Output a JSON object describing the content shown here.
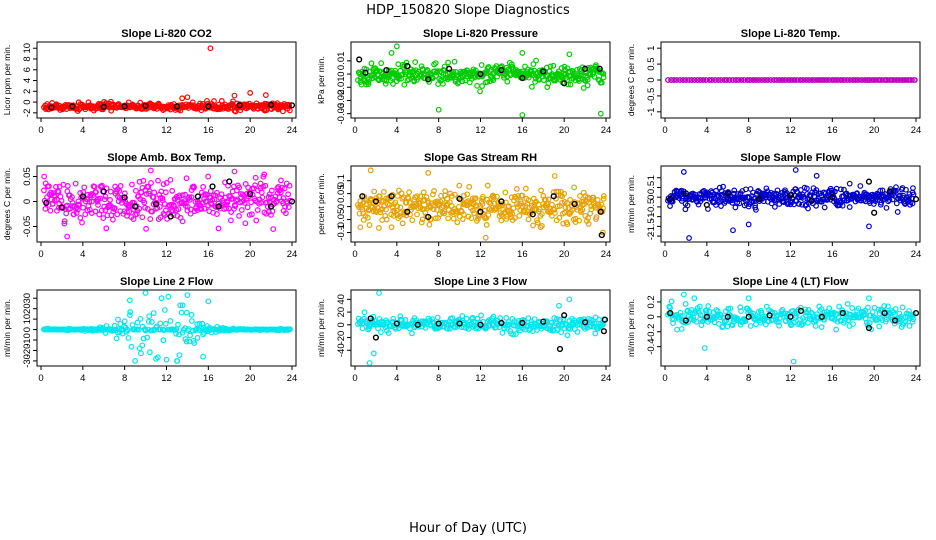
{
  "figure": {
    "title": "HDP_150820  Slope Diagnostics",
    "xlabel": "Hour of Day (UTC)"
  },
  "chart_data": [
    {
      "type": "scatter",
      "title": "Slope Li-820 CO2",
      "ylabel": "Licor ppm per min.",
      "color": "#ff0000",
      "xlim": [
        0,
        24
      ],
      "xticks": [
        0,
        4,
        8,
        12,
        16,
        20,
        24
      ],
      "ylim": [
        -2.4,
        10.6
      ],
      "yticks": [
        -2,
        0,
        2,
        4,
        6,
        8,
        10
      ],
      "spread": 0.5,
      "n": 360,
      "seed": 11,
      "black": [
        [
          1,
          -1
        ],
        [
          3,
          -0.8
        ],
        [
          6,
          -0.9
        ],
        [
          8,
          -0.8
        ],
        [
          10,
          -0.7
        ],
        [
          13,
          -0.8
        ],
        [
          16,
          -0.8
        ],
        [
          19,
          -0.6
        ],
        [
          22,
          -0.5
        ],
        [
          24,
          -0.6
        ]
      ],
      "outliers": [
        [
          16.2,
          10
        ],
        [
          20,
          1.7
        ],
        [
          21.5,
          1.3
        ],
        [
          18.5,
          1.2
        ],
        [
          14,
          0.9
        ],
        [
          13.5,
          0.7
        ]
      ]
    },
    {
      "type": "scatter",
      "title": "Slope Li-820 Pressure",
      "ylabel": "kPa per min.",
      "color": "#00cc00",
      "xlim": [
        0,
        24
      ],
      "xticks": [
        0,
        4,
        8,
        12,
        16,
        20,
        24
      ],
      "ylim": [
        -0.031,
        0.022
      ],
      "yticks": [
        -0.03,
        -0.02,
        -0.01,
        0.0,
        0.01
      ],
      "spread": 0.0045,
      "n": 420,
      "seed": 23,
      "black": [
        [
          0.4,
          0.011
        ],
        [
          1,
          0.001
        ],
        [
          3,
          0.003
        ],
        [
          5,
          0.006
        ],
        [
          7,
          -0.004
        ],
        [
          9,
          0.004
        ],
        [
          12,
          0.0
        ],
        [
          14,
          0.003
        ],
        [
          16,
          -0.003
        ],
        [
          18,
          0.002
        ],
        [
          20,
          -0.007
        ],
        [
          22,
          0.004
        ],
        [
          23.4,
          0.004
        ]
      ],
      "outliers": [
        [
          8,
          -0.027
        ],
        [
          16,
          -0.031
        ],
        [
          23.5,
          -0.03
        ],
        [
          4,
          0.021
        ],
        [
          3.5,
          0.016
        ],
        [
          16,
          0.016
        ],
        [
          20.5,
          0.015
        ]
      ]
    },
    {
      "type": "scatter",
      "title": "Slope Li-820 Temp.",
      "ylabel": "degrees C per min.",
      "color": "#ff00ff",
      "xlim": [
        0,
        24
      ],
      "xticks": [
        0,
        4,
        8,
        12,
        16,
        20,
        24
      ],
      "ylim": [
        -1.1,
        1.1
      ],
      "yticks": [
        -1.0,
        -0.5,
        0.0,
        0.5,
        1.0
      ],
      "spread": 0,
      "n": 85,
      "seed": 31,
      "black": [],
      "outliers": []
    },
    {
      "type": "scatter",
      "title": "Slope Amb. Box Temp.",
      "ylabel": "degrees C per min.",
      "color": "#ff00ff",
      "xlim": [
        0,
        24
      ],
      "xticks": [
        0,
        4,
        8,
        12,
        16,
        20,
        24
      ],
      "ylim": [
        -0.075,
        0.065
      ],
      "yticks": [
        -0.05,
        0.0,
        0.05
      ],
      "spread": 0.025,
      "n": 420,
      "seed": 47,
      "black": [
        [
          0.5,
          -0.003
        ],
        [
          2,
          -0.012
        ],
        [
          4,
          0.01
        ],
        [
          6,
          0.02
        ],
        [
          8,
          0.008
        ],
        [
          9,
          -0.01
        ],
        [
          11,
          -0.005
        ],
        [
          12.4,
          -0.03
        ],
        [
          15,
          0.01
        ],
        [
          17,
          -0.01
        ],
        [
          16.4,
          0.03
        ],
        [
          18,
          0.04
        ],
        [
          20,
          0.015
        ],
        [
          22,
          -0.01
        ],
        [
          24,
          0.0
        ]
      ],
      "outliers": [
        [
          18.5,
          0.06
        ],
        [
          10.5,
          0.062
        ],
        [
          2.5,
          -0.07
        ],
        [
          0.3,
          0.05
        ]
      ]
    },
    {
      "type": "scatter",
      "title": "Slope Gas Stream RH",
      "ylabel": "percent per min.",
      "color": "#e6a000",
      "xlim": [
        0,
        24
      ],
      "xticks": [
        0,
        4,
        8,
        12,
        16,
        20,
        24
      ],
      "ylim": [
        -0.125,
        0.145
      ],
      "yticks": [
        -0.1,
        -0.05,
        0.0,
        0.05,
        0.1
      ],
      "spread": 0.04,
      "n": 420,
      "seed": 59,
      "black": [
        [
          0.7,
          0.04
        ],
        [
          2,
          0.02
        ],
        [
          3.5,
          0.04
        ],
        [
          5,
          -0.02
        ],
        [
          7,
          -0.04
        ],
        [
          10,
          0.03
        ],
        [
          12,
          -0.02
        ],
        [
          14,
          0.02
        ],
        [
          17,
          -0.03
        ],
        [
          19,
          0.04
        ],
        [
          21,
          0.01
        ],
        [
          23.5,
          -0.02
        ],
        [
          23.6,
          -0.11
        ]
      ],
      "outliers": [
        [
          1.5,
          0.14
        ],
        [
          12.5,
          -0.12
        ],
        [
          7,
          0.13
        ],
        [
          23.7,
          -0.1
        ]
      ]
    },
    {
      "type": "scatter",
      "title": "Slope Sample Flow",
      "ylabel": "ml/min per min.",
      "color": "#0000cc",
      "xlim": [
        0,
        24
      ],
      "xticks": [
        0,
        4,
        8,
        12,
        16,
        20,
        24
      ],
      "ylim": [
        -2.15,
        1.45
      ],
      "yticks": [
        -2.0,
        -1.5,
        -1.0,
        -0.5,
        0.0,
        0.5,
        1.0
      ],
      "spread": 0.3,
      "n": 420,
      "seed": 71,
      "black": [
        [
          0.5,
          -0.1
        ],
        [
          2,
          0.2
        ],
        [
          4,
          -0.4
        ],
        [
          6,
          0.2
        ],
        [
          9,
          -0.1
        ],
        [
          12,
          0.1
        ],
        [
          14,
          -0.2
        ],
        [
          16,
          0.0
        ],
        [
          19.5,
          0.8
        ],
        [
          20,
          -0.8
        ],
        [
          21.5,
          0.3
        ],
        [
          24,
          -0.1
        ]
      ],
      "outliers": [
        [
          2.3,
          -2.1
        ],
        [
          6.5,
          -1.7
        ],
        [
          12.5,
          1.4
        ],
        [
          1.8,
          1.3
        ],
        [
          19.5,
          -1.5
        ],
        [
          14.5,
          1.1
        ],
        [
          8,
          -1.4
        ]
      ]
    },
    {
      "type": "scatter",
      "title": "Slope Line 2 Flow",
      "ylabel": "ml/min per min.",
      "color": "#00e5ee",
      "xlim": [
        0,
        24
      ],
      "xticks": [
        0,
        4,
        8,
        12,
        16,
        20,
        24
      ],
      "ylim": [
        -32,
        35
      ],
      "yticks": [
        -30,
        -20,
        -10,
        0,
        10,
        20,
        30
      ],
      "spread": 12,
      "n": 300,
      "seed": 83,
      "black": [],
      "outliers": [
        [
          10,
          35
        ],
        [
          14,
          33
        ],
        [
          8.5,
          28
        ],
        [
          16,
          27
        ],
        [
          9,
          -30
        ],
        [
          13,
          -30
        ],
        [
          11,
          -28
        ],
        [
          15.5,
          -26
        ]
      ]
    },
    {
      "type": "scatter",
      "title": "Slope Line 3 Flow",
      "ylabel": "ml/min per min.",
      "color": "#00e5ee",
      "xlim": [
        0,
        24
      ],
      "xticks": [
        0,
        4,
        8,
        12,
        16,
        20,
        24
      ],
      "ylim": [
        -60,
        50
      ],
      "yticks": [
        -40,
        -20,
        0,
        20,
        40
      ],
      "spread": 8,
      "n": 330,
      "seed": 97,
      "black": [
        [
          1.5,
          10
        ],
        [
          2,
          -20
        ],
        [
          4,
          2
        ],
        [
          6,
          0
        ],
        [
          8,
          2
        ],
        [
          10,
          2
        ],
        [
          12,
          0
        ],
        [
          14,
          3
        ],
        [
          16,
          3
        ],
        [
          18,
          5
        ],
        [
          19.6,
          -38
        ],
        [
          20,
          15
        ],
        [
          22,
          4
        ],
        [
          23.8,
          -10
        ],
        [
          23.9,
          8
        ]
      ],
      "outliers": [
        [
          2.3,
          50
        ],
        [
          1.4,
          -60
        ],
        [
          19.5,
          30
        ],
        [
          20.5,
          40
        ],
        [
          1.8,
          -45
        ]
      ]
    },
    {
      "type": "scatter",
      "title": "Slope Line 4 (LT) Flow",
      "ylabel": "ml/min per min.",
      "color": "#00e5ee",
      "xlim": [
        0,
        24
      ],
      "xticks": [
        0,
        4,
        8,
        12,
        16,
        20,
        24
      ],
      "ylim": [
        -0.62,
        0.32
      ],
      "yticks": [
        -0.4,
        -0.2,
        0.0,
        0.2
      ],
      "spread": 0.09,
      "n": 330,
      "seed": 113,
      "black": [
        [
          0.5,
          0.05
        ],
        [
          2,
          -0.05
        ],
        [
          4,
          0.0
        ],
        [
          6,
          0.0
        ],
        [
          8,
          0.0
        ],
        [
          10,
          0.02
        ],
        [
          12,
          0.0
        ],
        [
          13,
          0.08
        ],
        [
          15,
          0.0
        ],
        [
          17,
          0.05
        ],
        [
          19.5,
          -0.15
        ],
        [
          21,
          0.05
        ],
        [
          22,
          -0.05
        ],
        [
          24,
          0.05
        ]
      ],
      "outliers": [
        [
          1.8,
          0.3
        ],
        [
          12.3,
          -0.6
        ],
        [
          3.8,
          -0.42
        ],
        [
          19.5,
          0.25
        ],
        [
          8,
          0.25
        ],
        [
          2.8,
          0.25
        ]
      ]
    }
  ]
}
